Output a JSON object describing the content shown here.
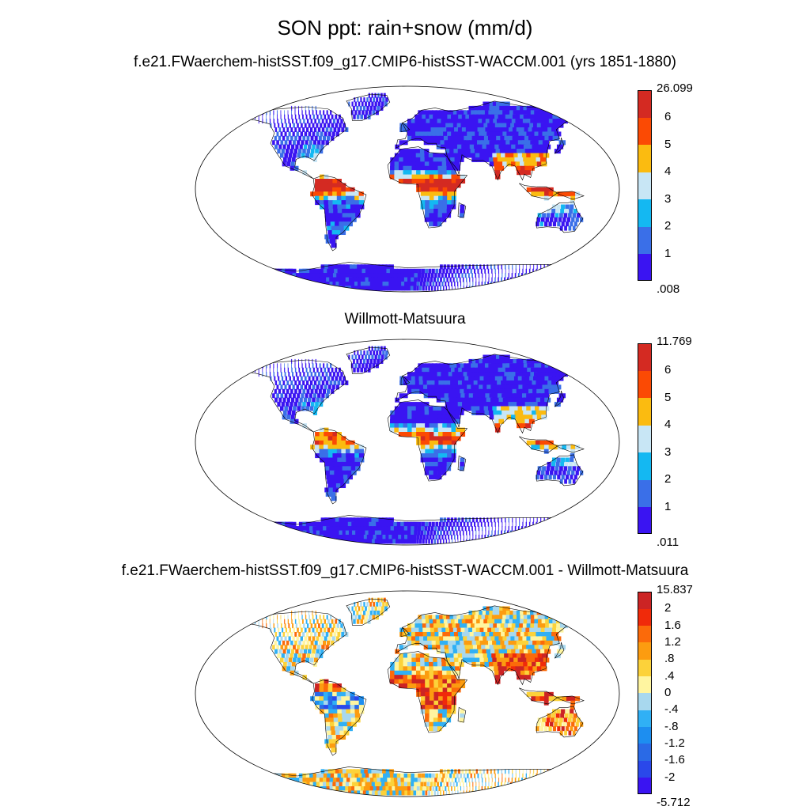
{
  "title": "SON ppt: rain+snow (mm/d)",
  "panels": [
    {
      "title": "f.e21.FWaerchem-histSST.f09_g17.CMIP6-histSST-WACCM.001 (yrs 1851-1880)",
      "kind": "absolute",
      "colorbar": {
        "labels": [
          ".008",
          "1",
          "2",
          "3",
          "4",
          "5",
          "6",
          "26.099"
        ],
        "colors": [
          "#3a14f2",
          "#3a6fe8",
          "#14b8f2",
          "#c8e6f5",
          "#fbbb10",
          "#fb4a04",
          "#d42a22"
        ]
      }
    },
    {
      "title": "Willmott-Matsuura",
      "kind": "absolute",
      "colorbar": {
        "labels": [
          ".011",
          "1",
          "2",
          "3",
          "4",
          "5",
          "6",
          "11.769"
        ],
        "colors": [
          "#3a14f2",
          "#3a6fe8",
          "#14b8f2",
          "#c8e6f5",
          "#fbbb10",
          "#fb4a04",
          "#d42a22"
        ]
      }
    },
    {
      "title": "f.e21.FWaerchem-histSST.f09_g17.CMIP6-histSST-WACCM.001 - Willmott-Matsuura",
      "kind": "difference",
      "colorbar": {
        "labels": [
          "-5.712",
          "-2",
          "-1.6",
          "-1.2",
          "-.8",
          "-.4",
          "0",
          ".4",
          ".8",
          "1.2",
          "1.6",
          "2",
          "15.837"
        ],
        "colors": [
          "#3a14f2",
          "#2a48ea",
          "#2a6ae6",
          "#1d8ef0",
          "#30b0f5",
          "#a8d8ee",
          "#fff5a0",
          "#fcd23a",
          "#fc9c10",
          "#fb6a0a",
          "#f02a0a",
          "#cc2424"
        ]
      }
    }
  ]
}
